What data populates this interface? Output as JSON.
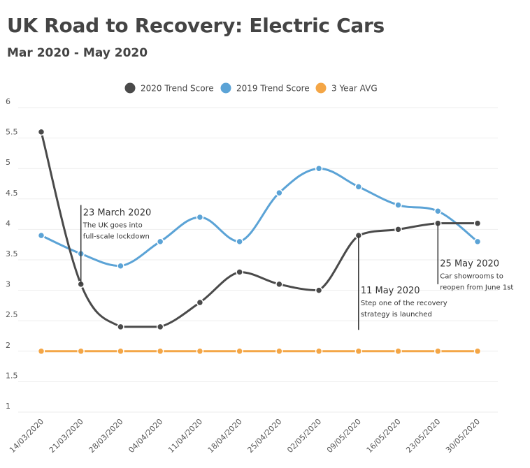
{
  "chart_data": {
    "type": "line",
    "title": "UK Road to Recovery: Electric Cars",
    "subtitle": "Mar 2020 - May 2020",
    "xlabel": "",
    "ylabel": "",
    "categories": [
      "14/03/2020",
      "21/03/2020",
      "28/03/2020",
      "04/04/2020",
      "11/04/2020",
      "18/04/2020",
      "25/04/2020",
      "02/05/2020",
      "09/05/2020",
      "16/05/2020",
      "23/05/2020",
      "30/05/2020"
    ],
    "y_ticks": [
      "1",
      "1.5",
      "2",
      "2.5",
      "3",
      "3.5",
      "4",
      "4.5",
      "5",
      "5.5",
      "6"
    ],
    "ylim": [
      1,
      6
    ],
    "grid": true,
    "legend_position": "top-center",
    "series": [
      {
        "name": "2020 Trend Score",
        "color": "#4a4a4a",
        "values": [
          5.6,
          3.1,
          2.4,
          2.4,
          2.8,
          3.3,
          3.1,
          3.0,
          3.9,
          4.0,
          4.1,
          4.1
        ]
      },
      {
        "name": "2019 Trend Score",
        "color": "#5ba3d6",
        "values": [
          3.9,
          3.6,
          3.4,
          3.8,
          4.2,
          3.8,
          4.6,
          5.0,
          4.7,
          4.4,
          4.3,
          3.8
        ]
      },
      {
        "name": "3 Year AVG",
        "color": "#f4a646",
        "values": [
          2.0,
          2.0,
          2.0,
          2.0,
          2.0,
          2.0,
          2.0,
          2.0,
          2.0,
          2.0,
          2.0,
          2.0
        ]
      }
    ],
    "annotations": [
      {
        "category_index": 1,
        "y_from": 3.1,
        "y_to": 4.4,
        "side": "right",
        "title": "23 March 2020",
        "lines": [
          "The UK goes into",
          "full-scale lockdown"
        ]
      },
      {
        "category_index": 8,
        "y_from": 3.9,
        "y_to": 2.35,
        "side": "right",
        "title": "11 May 2020",
        "lines": [
          "Step one of the recovery",
          "strategy is launched"
        ]
      },
      {
        "category_index": 10,
        "y_from": 4.1,
        "y_to": 3.1,
        "side": "right",
        "title": "25 May 2020",
        "lines": [
          "Car showrooms to",
          "reopen from June 1st"
        ]
      }
    ]
  }
}
